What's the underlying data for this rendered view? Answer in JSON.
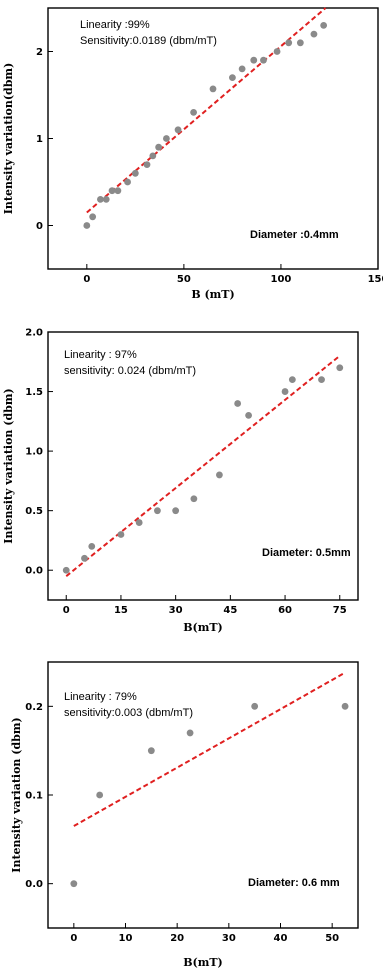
{
  "chart_data": [
    {
      "type": "scatter",
      "xlabel": "B (mT)",
      "ylabel": "Intensity variation(dbm)",
      "xlim": [
        -20,
        150
      ],
      "ylim": [
        -0.5,
        2.5
      ],
      "xticks": [
        0,
        50,
        100,
        150
      ],
      "yticks": [
        0,
        1,
        2
      ],
      "ytick_labels": [
        "0",
        "1",
        "2"
      ],
      "annotations": [
        "Linearity :99%",
        "Sensitivity:0.0189 (dbm/mT)"
      ],
      "diameter": "Diameter :0.4mm",
      "x": [
        0,
        3,
        7,
        10,
        13,
        16,
        21,
        25,
        31,
        34,
        37,
        41,
        47,
        55,
        65,
        75,
        80,
        86,
        91,
        98,
        104,
        110,
        117,
        122
      ],
      "y": [
        0,
        0.1,
        0.3,
        0.3,
        0.4,
        0.4,
        0.5,
        0.6,
        0.7,
        0.8,
        0.9,
        1.0,
        1.1,
        1.3,
        1.57,
        1.7,
        1.8,
        1.9,
        1.9,
        2.0,
        2.1,
        2.1,
        2.2,
        2.3
      ],
      "fit": {
        "x": [
          0,
          123
        ],
        "y": [
          0.15,
          2.5
        ]
      }
    },
    {
      "type": "scatter",
      "xlabel": "B(mT)",
      "ylabel": "Intensity variation (dbm)",
      "xlim": [
        -5,
        80
      ],
      "ylim": [
        -0.25,
        2.0
      ],
      "xticks": [
        0,
        15,
        30,
        45,
        60,
        75
      ],
      "yticks": [
        0,
        0.5,
        1.0,
        1.5,
        2.0
      ],
      "ytick_labels": [
        "0.0",
        "0.5",
        "1.0",
        "1.5",
        "2.0"
      ],
      "annotations": [
        "Linearity : 97%",
        "sensitivity: 0.024 (dbm/mT)"
      ],
      "diameter": "Diameter: 0.5mm",
      "x": [
        0,
        5,
        7,
        15,
        20,
        25,
        30,
        35,
        42,
        47,
        50,
        60,
        62,
        70,
        75
      ],
      "y": [
        0,
        0.1,
        0.2,
        0.3,
        0.4,
        0.5,
        0.5,
        0.6,
        0.8,
        1.4,
        1.3,
        1.5,
        1.6,
        1.6,
        1.7
      ],
      "fit": {
        "x": [
          0,
          75
        ],
        "y": [
          -0.05,
          1.8
        ]
      }
    },
    {
      "type": "scatter",
      "xlabel": "B(mT)",
      "ylabel": "Intensity variation (dbm)",
      "xlim": [
        -5,
        55
      ],
      "ylim": [
        -0.05,
        0.25
      ],
      "xticks": [
        0,
        10,
        20,
        30,
        40,
        50
      ],
      "yticks": [
        0,
        0.1,
        0.2
      ],
      "ytick_labels": [
        "0.0",
        "0.1",
        "0.2"
      ],
      "annotations": [
        "Linearity : 79%",
        "sensitivity:0.003 (dbm/mT)"
      ],
      "diameter": "Diameter: 0.6 mm",
      "x": [
        0,
        5,
        15,
        22.5,
        35,
        52.5
      ],
      "y": [
        0,
        0.1,
        0.15,
        0.17,
        0.2,
        0.2
      ],
      "fit": {
        "x": [
          0,
          52.5
        ],
        "y": [
          0.065,
          0.238
        ]
      }
    }
  ]
}
